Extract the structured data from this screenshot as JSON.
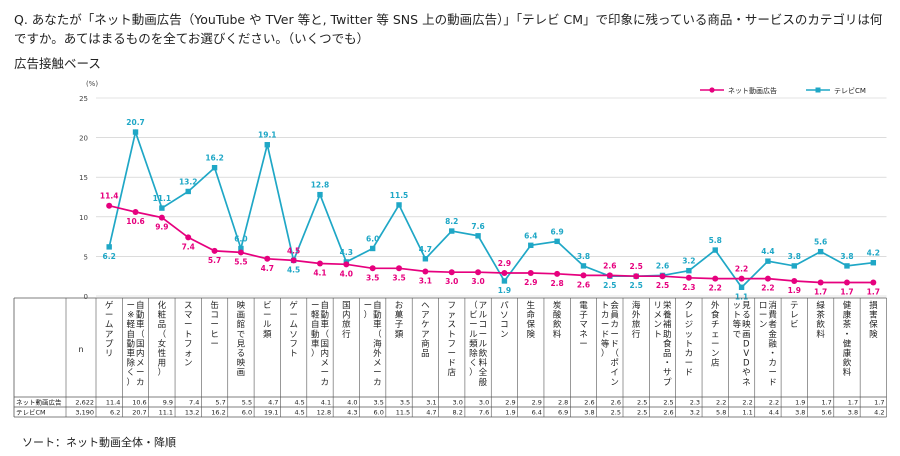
{
  "question": "Q. あなたが「ネット動画広告（YouTube や TVer 等と, Twitter 等 SNS 上の動画広告）」「テレビ CM」で印象に残っている商品・サービスのカテゴリは何ですか。あてはまるものを全てお選びください。（いくつでも）",
  "base_label": "広告接触ベース",
  "sort_note": "ソート：ネット動画全体・降順",
  "colors": {
    "net": "#e6007e",
    "tv": "#1fa7c6",
    "grid": "#c8c8c8",
    "table_line": "#555555"
  },
  "chart_data": {
    "type": "line",
    "unit_label": "(%)",
    "ylim": [
      0,
      25
    ],
    "yticks": [
      0,
      5,
      10,
      15,
      20,
      25
    ],
    "n_header": "n",
    "categories": [
      "ゲームアプリ",
      "自動車（国内メーカー※軽自動車除く）",
      "化粧品（女性用）",
      "スマートフォン",
      "缶コーヒー",
      "映画館で見る映画",
      "ビール類",
      "ゲームソフト",
      "自動車（国内メーカー軽自動車）",
      "国内旅行",
      "自動車（海外メーカー）",
      "お菓子類",
      "ヘアケア商品",
      "ファストフード店",
      "アルコール飲料全般（ビール類除く）",
      "パソコン",
      "生命保険",
      "炭酸飲料",
      "電子マネー",
      "会員カード（ポイントカード等）",
      "海外旅行",
      "栄養補助食品・サプリメント",
      "クレジットカード",
      "外食チェーン店",
      "見る映画DVDやネット等で",
      "消費者金融・カードローン",
      "テレビ",
      "緑茶飲料",
      "健康茶・健康飲料",
      "損害保険"
    ],
    "series": [
      {
        "name": "ネット動画広告",
        "row_label": "ネット動画広告",
        "n": "2,622",
        "values": [
          11.4,
          10.6,
          9.9,
          7.4,
          5.7,
          5.5,
          4.7,
          4.5,
          4.1,
          4.0,
          3.5,
          3.5,
          3.1,
          3.0,
          3.0,
          2.9,
          2.9,
          2.8,
          2.6,
          2.6,
          2.5,
          2.5,
          2.3,
          2.2,
          2.2,
          2.2,
          1.9,
          1.7,
          1.7,
          1.7
        ],
        "labels": [
          "11.4",
          "10.6",
          "9.9",
          "7.4",
          "5.7",
          "5.5",
          "4.7",
          "4.5",
          "4.1",
          "4.0",
          "3.5",
          "3.5",
          "3.1",
          "3.0",
          "3.0",
          "2.9",
          "2.9",
          "2.8",
          "2.6",
          "2.6",
          "2.5",
          "2.5",
          "2.3",
          "2.2",
          "2.2",
          "2.2",
          "1.9",
          "1.7",
          "1.7",
          "1.7"
        ]
      },
      {
        "name": "テレビCM",
        "row_label": "テレビCM",
        "n": "3,190",
        "values": [
          6.2,
          20.7,
          11.1,
          13.2,
          16.2,
          6.0,
          19.1,
          4.5,
          12.8,
          4.3,
          6.0,
          11.5,
          4.7,
          8.2,
          7.6,
          1.9,
          6.4,
          6.9,
          3.8,
          2.5,
          2.5,
          2.6,
          3.2,
          5.8,
          1.1,
          4.4,
          3.8,
          5.6,
          3.8,
          4.2
        ],
        "labels": [
          "6.2",
          "20.7",
          "11.1",
          "13.2",
          "16.2",
          "6.0",
          "19.1",
          "4.5",
          "12.8",
          "4.3",
          "6.0",
          "11.5",
          "4.7",
          "8.2",
          "7.6",
          "1.9",
          "6.4",
          "6.9",
          "3.8",
          "2.5",
          "2.5",
          "2.6",
          "3.2",
          "5.8",
          "1.1",
          "4.4",
          "3.8",
          "5.6",
          "3.8",
          "4.2"
        ]
      }
    ]
  }
}
